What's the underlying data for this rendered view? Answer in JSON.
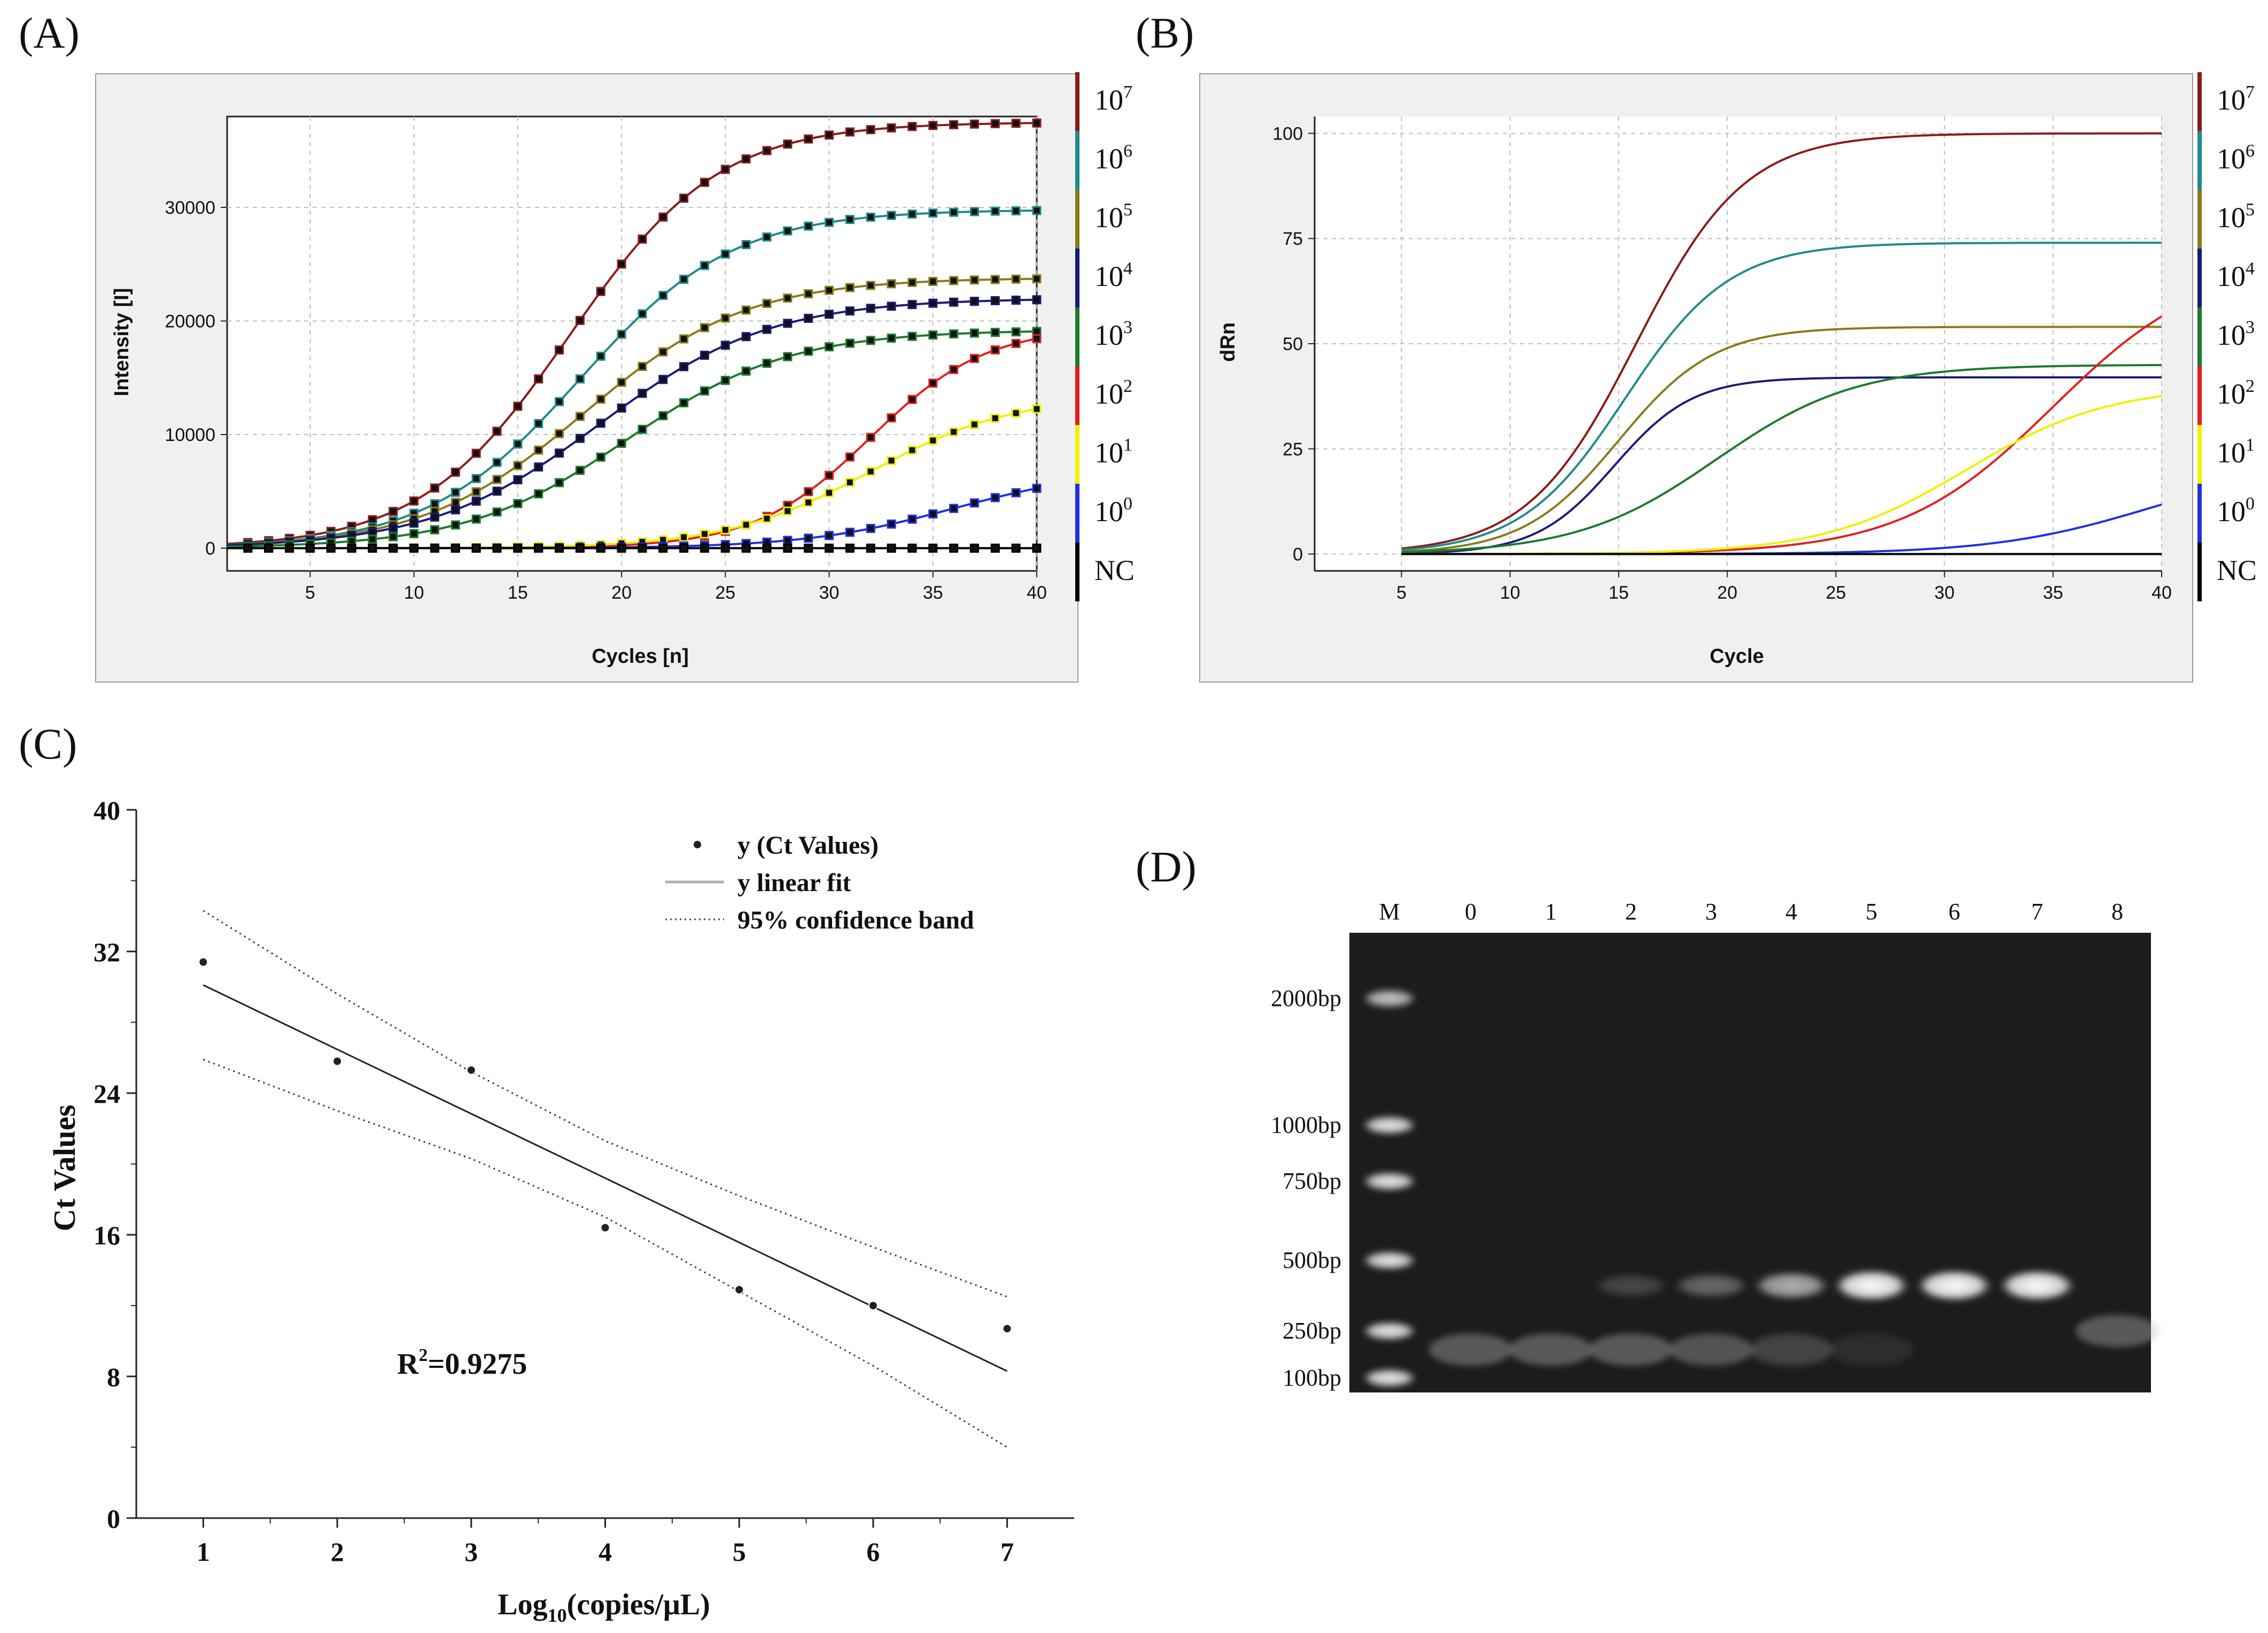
{
  "figure": {
    "panel_labels": [
      "(A)",
      "(B)",
      "(C)",
      "(D)"
    ]
  },
  "colors": {
    "1e7": "#8b1a1a",
    "1e6": "#1f8a8a",
    "1e5": "#8a7a1a",
    "1e4": "#1a1a7a",
    "1e3": "#1a7a2a",
    "1e2": "#e02020",
    "1e1": "#f0f000",
    "1e0": "#2030e0",
    "NC": "#000000"
  },
  "legend": {
    "entries": [
      {
        "key": "1e7",
        "base": "10",
        "exp": "7"
      },
      {
        "key": "1e6",
        "base": "10",
        "exp": "6"
      },
      {
        "key": "1e5",
        "base": "10",
        "exp": "5"
      },
      {
        "key": "1e4",
        "base": "10",
        "exp": "4"
      },
      {
        "key": "1e3",
        "base": "10",
        "exp": "3"
      },
      {
        "key": "1e2",
        "base": "10",
        "exp": "2"
      },
      {
        "key": "1e1",
        "base": "10",
        "exp": "1"
      },
      {
        "key": "1e0",
        "base": "10",
        "exp": "0"
      },
      {
        "key": "NC",
        "base": "NC",
        "exp": ""
      }
    ]
  },
  "chart_data": [
    {
      "panel": "A",
      "type": "line",
      "xlabel": "Cycles [n]",
      "ylabel": "Intensity [I]",
      "xlim": [
        1,
        40
      ],
      "ylim": [
        -2000,
        38000
      ],
      "xticks": [
        5,
        10,
        15,
        20,
        25,
        30,
        35,
        40
      ],
      "yticks": [
        0,
        10000,
        20000,
        30000
      ],
      "grid": true,
      "markers": true,
      "series": [
        {
          "key": "1e7",
          "plateau": 37500,
          "midpoint": 17.5,
          "slope": 3.6
        },
        {
          "key": "1e6",
          "plateau": 29800,
          "midpoint": 18.0,
          "slope": 3.7
        },
        {
          "key": "1e5",
          "plateau": 23800,
          "midpoint": 18.2,
          "slope": 3.9
        },
        {
          "key": "1e4",
          "plateau": 22000,
          "midpoint": 19.0,
          "slope": 4.1
        },
        {
          "key": "1e3",
          "plateau": 19200,
          "midpoint": 20.3,
          "slope": 3.9
        },
        {
          "key": "1e2",
          "plateau": 19500,
          "midpoint": 32.0,
          "slope": 2.8
        },
        {
          "key": "1e1",
          "plateau": 13500,
          "midpoint": 32.0,
          "slope": 3.5
        },
        {
          "key": "1e0",
          "plateau": 7000,
          "midpoint": 36.0,
          "slope": 3.6
        },
        {
          "key": "NC",
          "plateau": 0,
          "midpoint": 30.0,
          "slope": 3.0
        }
      ]
    },
    {
      "panel": "B",
      "type": "line",
      "xlabel": "Cycle",
      "ylabel": "dRn",
      "xlim": [
        1,
        40
      ],
      "ylim": [
        -4,
        104
      ],
      "xticks": [
        5,
        10,
        15,
        20,
        25,
        30,
        35,
        40
      ],
      "yticks": [
        0,
        25,
        50,
        75,
        100
      ],
      "grid": true,
      "series": [
        {
          "key": "1e7",
          "plateau": 100,
          "midpoint": 15.8,
          "slope": 2.5
        },
        {
          "key": "1e6",
          "plateau": 74,
          "midpoint": 15.3,
          "slope": 2.4
        },
        {
          "key": "1e5",
          "plateau": 54,
          "midpoint": 15.0,
          "slope": 2.2
        },
        {
          "key": "1e4",
          "plateau": 42,
          "midpoint": 14.8,
          "slope": 1.8
        },
        {
          "key": "1e3",
          "plateau": 45,
          "midpoint": 19.5,
          "slope": 3.2
        },
        {
          "key": "1e2",
          "plateau": 70,
          "midpoint": 35.0,
          "slope": 3.5
        },
        {
          "key": "1e1",
          "plateau": 40,
          "midpoint": 31.0,
          "slope": 3.3
        },
        {
          "key": "1e0",
          "plateau": 22,
          "midpoint": 39.5,
          "slope": 3.6
        },
        {
          "key": "NC",
          "plateau": 0,
          "midpoint": 30.0,
          "slope": 3.0
        }
      ]
    },
    {
      "panel": "C",
      "type": "scatter",
      "xlabel_base": "Log",
      "xlabel_sub": "10",
      "xlabel_rest": "(copies/μL)",
      "ylabel": "Ct Values",
      "xlim": [
        0.5,
        7.5
      ],
      "ylim": [
        0,
        40
      ],
      "xticks": [
        1,
        2,
        3,
        4,
        5,
        6,
        7
      ],
      "yticks": [
        0,
        8,
        16,
        24,
        32,
        40
      ],
      "x": [
        1,
        2,
        3,
        4,
        5,
        6,
        7
      ],
      "y": [
        31.4,
        25.8,
        25.3,
        16.4,
        12.9,
        12.0,
        10.7
      ],
      "fit": {
        "x": [
          1,
          7
        ],
        "y": [
          30.1,
          8.3
        ]
      },
      "upper_band": {
        "x": [
          1,
          2,
          3,
          4,
          5,
          6,
          7
        ],
        "y": [
          34.3,
          29.6,
          25.2,
          21.3,
          18.2,
          15.3,
          12.5
        ]
      },
      "lower_band": {
        "x": [
          1,
          2,
          3,
          4,
          5,
          6,
          7
        ],
        "y": [
          25.9,
          23.0,
          20.3,
          17.0,
          12.8,
          8.6,
          4.0
        ]
      },
      "annotation_base": "R",
      "annotation_sup": "2",
      "annotation_rest": "=0.9275",
      "legend": [
        {
          "label": "y (Ct Values)",
          "style": "point"
        },
        {
          "label": "y linear fit",
          "style": "solid"
        },
        {
          "label": "95% confidence band",
          "style": "dotted"
        }
      ],
      "legend_position": "top-right"
    }
  ],
  "gel": {
    "lane_labels": [
      "M",
      "0",
      "1",
      "2",
      "3",
      "4",
      "5",
      "6",
      "7",
      "8"
    ],
    "marker_labels": [
      "2000bp",
      "1000bp",
      "750bp",
      "500bp",
      "250bp",
      "100bp"
    ],
    "marker_sizes_bp": [
      2000,
      1000,
      750,
      500,
      250,
      100
    ],
    "product_band_intensity": [
      0,
      0,
      0.2,
      0.35,
      0.65,
      1.0,
      1.0,
      1.0,
      0
    ],
    "primer_dimer_intensity": [
      0.55,
      0.55,
      0.55,
      0.5,
      0.35,
      0.15,
      0,
      0,
      0.55
    ]
  }
}
